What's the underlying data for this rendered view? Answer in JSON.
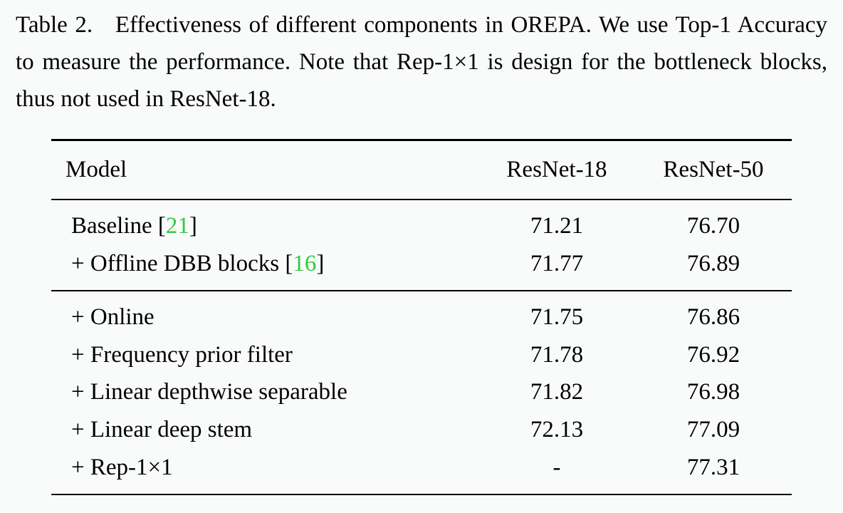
{
  "caption": {
    "label": "Table 2.",
    "text": "Effectiveness of different components in OREPA. We use Top-1 Accuracy to measure the performance. Note that Rep-1×1 is design for the bottleneck blocks, thus not used in ResNet-18."
  },
  "table": {
    "columns": [
      "Model",
      "ResNet-18",
      "ResNet-50"
    ],
    "rows": [
      {
        "model_pre": "Baseline [",
        "cite": "21",
        "model_post": "]",
        "r18": "71.21",
        "r50": "76.70",
        "section_end": false,
        "section_start": true
      },
      {
        "model_pre": "+ Offline DBB blocks [",
        "cite": "16",
        "model_post": "]",
        "r18": "71.77",
        "r50": "76.89",
        "section_end": true,
        "section_start": false
      },
      {
        "model_pre": "+ Online",
        "cite": "",
        "model_post": "",
        "r18": "71.75",
        "r50": "76.86",
        "section_end": false,
        "section_start": true
      },
      {
        "model_pre": "+ Frequency prior filter",
        "cite": "",
        "model_post": "",
        "r18": "71.78",
        "r50": "76.92",
        "section_end": false,
        "section_start": false
      },
      {
        "model_pre": "+ Linear depthwise separable",
        "cite": "",
        "model_post": "",
        "r18": "71.82",
        "r50": "76.98",
        "section_end": false,
        "section_start": false
      },
      {
        "model_pre": "+ Linear deep stem",
        "cite": "",
        "model_post": "",
        "r18": "72.13",
        "r50": "77.09",
        "section_end": false,
        "section_start": false
      },
      {
        "model_pre": "+ Rep-1×1",
        "cite": "",
        "model_post": "",
        "r18": "-",
        "r50": "77.31",
        "section_end": false,
        "section_start": false,
        "last": true
      }
    ],
    "cite_color": "#2ecc40",
    "background_color": "#f9fbfa",
    "text_color": "#000000",
    "rule_color": "#000000",
    "font_family": "Times New Roman",
    "caption_fontsize": 33,
    "cell_fontsize": 33
  }
}
